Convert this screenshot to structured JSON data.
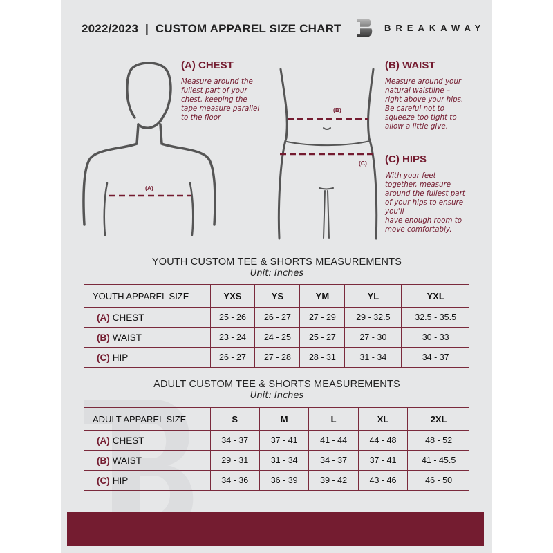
{
  "header": {
    "title": "2022/2023  |  CUSTOM APPAREL SIZE CHART",
    "brand": "BREAKAWAY"
  },
  "guides": [
    {
      "code": "(A)",
      "heading": "(A) CHEST",
      "text": "Measure around the fullest part of your chest, keeping the tape measure parallel to the floor",
      "lines": [
        "Measure around the",
        "fullest part of your",
        "chest, keeping the",
        "tape measure parallel",
        "to the floor"
      ]
    },
    {
      "code": "(B)",
      "heading": "(B) WAIST",
      "lines": [
        "Measure around your",
        "natural waistline –",
        "right above your hips.",
        "Be careful not to",
        "squeeze too tight to",
        "allow a little give."
      ]
    },
    {
      "code": "(C)",
      "heading": "(C) HIPS",
      "lines": [
        "With your feet",
        "together, measure",
        "around the fullest part",
        "of your hips to ensure",
        "you'll",
        "have enough room to",
        "move comfortably."
      ]
    }
  ],
  "colors": {
    "accent": "#741c30",
    "background": "#e6e7e8"
  },
  "youth": {
    "title": "YOUTH CUSTOM TEE & SHORTS MEASUREMENTS",
    "unit": "Unit: Inches",
    "size_label": "YOUTH APPAREL SIZE",
    "sizes": [
      "YXS",
      "YS",
      "YM",
      "YL",
      "YXL"
    ],
    "rows": [
      {
        "code": "(A)",
        "name": "CHEST",
        "values": [
          "25 - 26",
          "26 - 27",
          "27 - 29",
          "29 - 32.5",
          "32.5 - 35.5"
        ]
      },
      {
        "code": "(B)",
        "name": "WAIST",
        "values": [
          "23 - 24",
          "24 - 25",
          "25 - 27",
          "27 - 30",
          "30 - 33"
        ]
      },
      {
        "code": "(C)",
        "name": "HIP",
        "values": [
          "26 - 27",
          "27 - 28",
          "28 - 31",
          "31 - 34",
          "34 - 37"
        ]
      }
    ]
  },
  "adult": {
    "title": "ADULT CUSTOM TEE & SHORTS MEASUREMENTS",
    "unit": "Unit: Inches",
    "size_label": "ADULT APPAREL SIZE",
    "sizes": [
      "S",
      "M",
      "L",
      "XL",
      "2XL"
    ],
    "rows": [
      {
        "code": "(A)",
        "name": "CHEST",
        "values": [
          "34 - 37",
          "37 - 41",
          "41 - 44",
          "44 - 48",
          "48 - 52"
        ]
      },
      {
        "code": "(B)",
        "name": "WAIST",
        "values": [
          "29 - 31",
          "31 - 34",
          "34 - 37",
          "37 - 41",
          "41 - 45.5"
        ]
      },
      {
        "code": "(C)",
        "name": "HIP",
        "values": [
          "34 - 36",
          "36 - 39",
          "39 - 42",
          "43 - 46",
          "46 - 50"
        ]
      }
    ]
  }
}
